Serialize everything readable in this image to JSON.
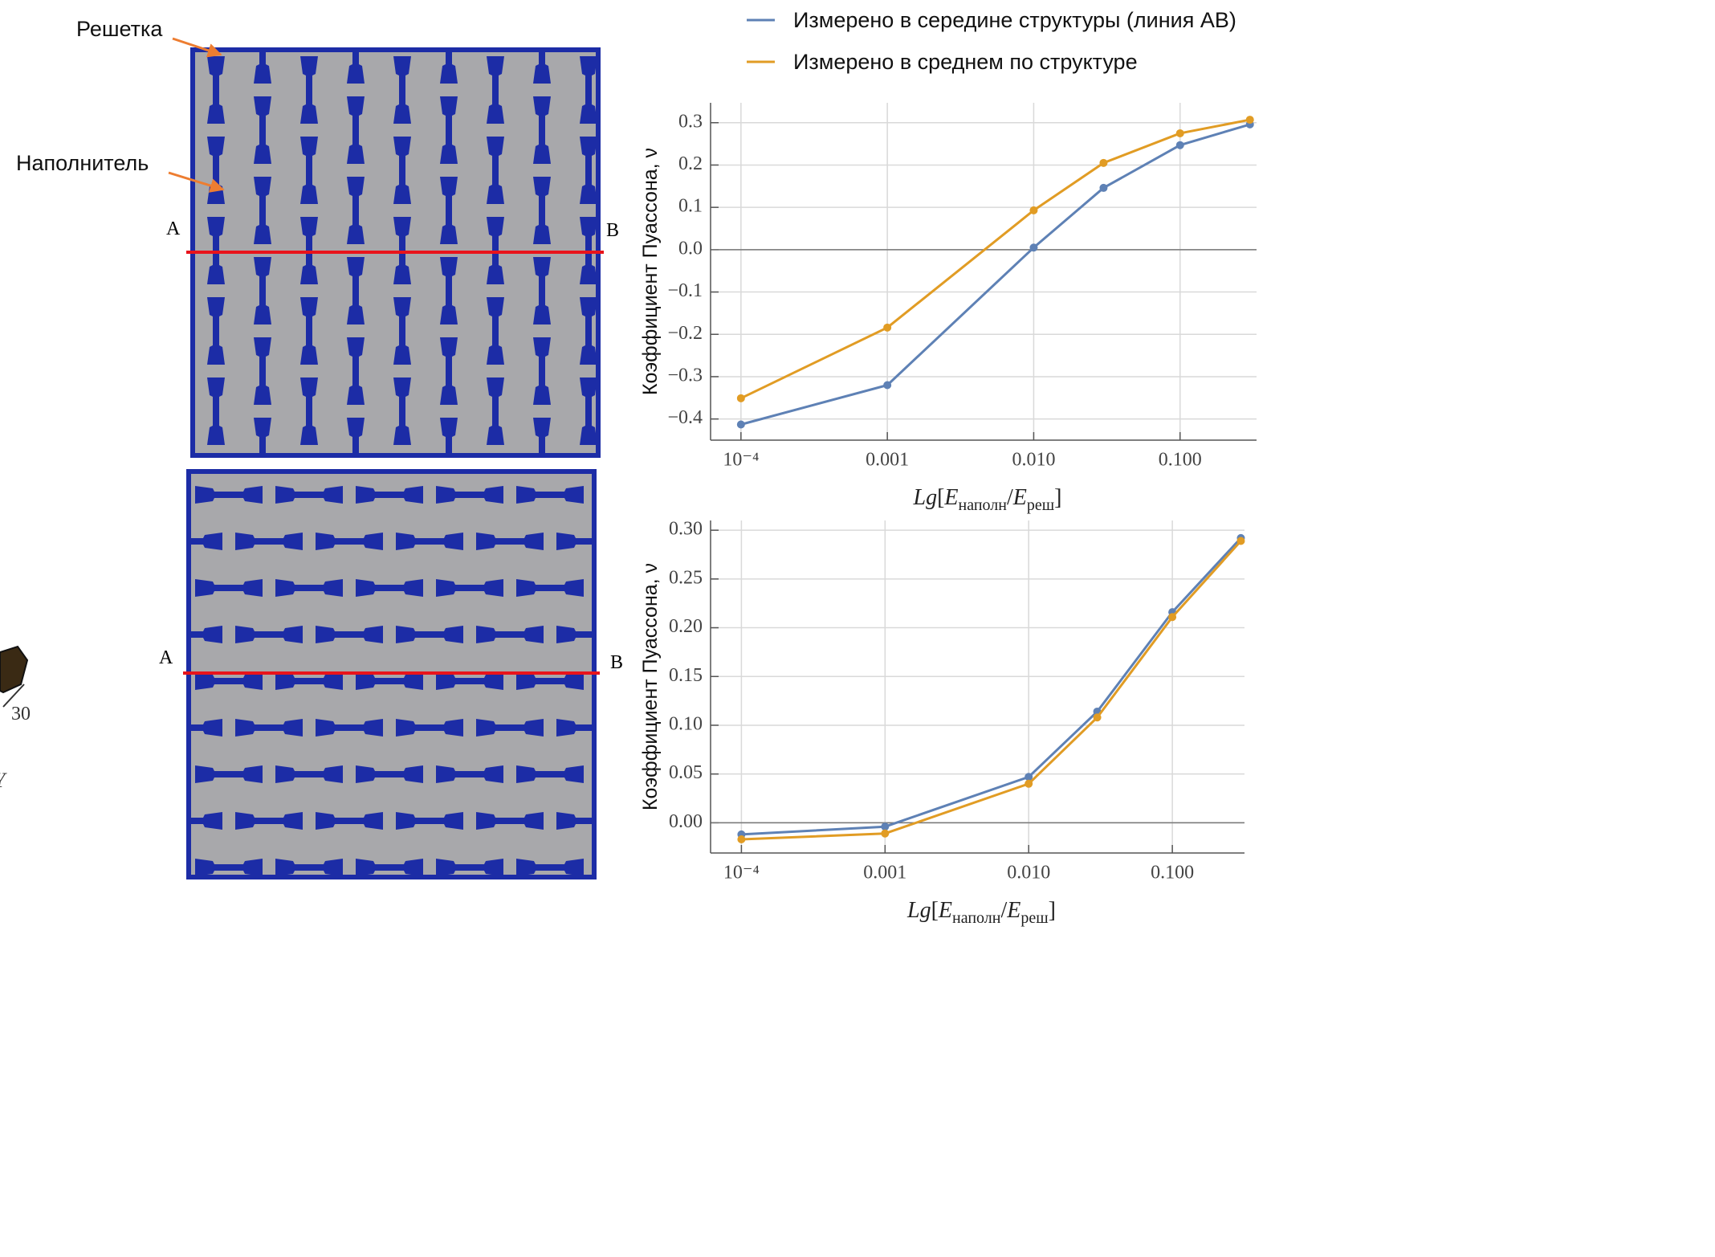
{
  "image_labels": {
    "lattice": "Решетка",
    "filler": "Наполнитель",
    "top_a": "A",
    "top_b": "B",
    "bottom_a": "A",
    "bottom_b": "B",
    "scale": "30",
    "axis": "Y"
  },
  "chart_data": [
    {
      "type": "line",
      "xlabel": [
        "Lg",
        "[",
        "E",
        "наполн",
        "/",
        "E",
        "реш",
        "]"
      ],
      "ylabel": "Коэффициент Пуассона, ν",
      "x": [
        0.0001,
        0.001,
        0.01,
        0.03,
        0.1,
        0.3
      ],
      "series": [
        {
          "name": "Измерено в середине структуры (линия АВ)",
          "color": "#5e81b5",
          "values": [
            -0.413,
            -0.32,
            0.005,
            0.146,
            0.247,
            0.296
          ]
        },
        {
          "name": "Измерено в среднем по структуре",
          "color": "#e19c24",
          "values": [
            -0.351,
            -0.184,
            0.093,
            0.205,
            0.275,
            0.307
          ]
        }
      ],
      "log_x": true,
      "grid": true,
      "xlim": [
        6.2e-05,
        0.333
      ],
      "ylim": [
        -0.45,
        0.347
      ],
      "xticks": [
        {
          "value": 0.0001,
          "label": "10⁻⁴"
        },
        0.001,
        {
          "value": 0.01,
          "label": "0.010"
        },
        {
          "value": 0.1,
          "label": "0.100"
        }
      ],
      "yticks": [
        {
          "value": -0.4,
          "label": "−0.4"
        },
        {
          "value": -0.3,
          "label": "−0.3"
        },
        {
          "value": -0.2,
          "label": "−0.2"
        },
        {
          "value": -0.1,
          "label": "−0.1"
        },
        {
          "value": 0,
          "label": "0.0"
        },
        0.1,
        0.2,
        0.3
      ]
    },
    {
      "type": "line",
      "xlabel": [
        "Lg",
        "[",
        "E",
        "наполн",
        "/",
        "E",
        "реш",
        "]"
      ],
      "ylabel": "Коэффициент Пуассона, ν",
      "x": [
        0.0001,
        0.001,
        0.01,
        0.03,
        0.1,
        0.3
      ],
      "series": [
        {
          "color": "#5e81b5",
          "values": [
            -0.012,
            -0.004,
            0.047,
            0.114,
            0.216,
            0.292
          ]
        },
        {
          "color": "#e19c24",
          "values": [
            -0.017,
            -0.011,
            0.04,
            0.108,
            0.211,
            0.289
          ]
        }
      ],
      "log_x": true,
      "grid": true,
      "xlim": [
        6.1e-05,
        0.318
      ],
      "ylim": [
        -0.031,
        0.31
      ],
      "xticks": [
        {
          "value": 0.0001,
          "label": "10⁻⁴"
        },
        0.001,
        {
          "value": 0.01,
          "label": "0.010"
        },
        {
          "value": 0.1,
          "label": "0.100"
        }
      ],
      "yticks": [
        {
          "value": 0,
          "label": "0.00"
        },
        0.05,
        {
          "value": 0.1,
          "label": "0.10"
        },
        0.15,
        {
          "value": 0.2,
          "label": "0.20"
        },
        0.25,
        {
          "value": 0.3,
          "label": "0.30"
        }
      ]
    }
  ]
}
